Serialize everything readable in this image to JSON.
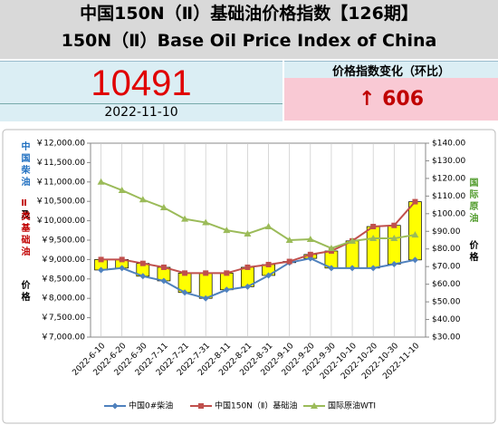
{
  "header": {
    "title_cn": "中国150N（Ⅱ）基础油价格指数【126期】",
    "title_en": "150N（Ⅱ）Base Oil Price Index of China"
  },
  "index": {
    "value": "10491",
    "date": "2022-11-10"
  },
  "change": {
    "label": "价格指数变化（环比）",
    "value": "↑ 606"
  },
  "chart_data": {
    "type": "line",
    "categories": [
      "2022-6-10",
      "2022-6-20",
      "2022-6-30",
      "2022-7-11",
      "2022-7-21",
      "2022-7-31",
      "2022-8-11",
      "2022-8-21",
      "2022-8-31",
      "2022-9-10",
      "2022-9-20",
      "2022-9-30",
      "2022-10-10",
      "2022-10-20",
      "2022-10-30",
      "2022-11-10"
    ],
    "series": [
      {
        "name": "中国0#柴油",
        "color": "#4f81bd",
        "marker": "diamond",
        "values": [
          8730,
          8780,
          8570,
          8450,
          8150,
          8000,
          8220,
          8300,
          8590,
          8920,
          9030,
          8780,
          8780,
          8780,
          8880,
          8990
        ]
      },
      {
        "name": "中国150N（Ⅱ）基础油",
        "color": "#c0504d",
        "marker": "square",
        "values": [
          9000,
          9000,
          8900,
          8800,
          8650,
          8650,
          8650,
          8800,
          8870,
          8950,
          9130,
          9220,
          9480,
          9850,
          9880,
          10491
        ]
      },
      {
        "name": "国际原油WTI",
        "color": "#9bbb59",
        "marker": "triangle",
        "axis": "y2",
        "values": [
          118,
          113.3,
          108,
          103.5,
          97,
          95,
          90.6,
          88.6,
          92.7,
          85,
          85.5,
          80.4,
          84.5,
          86,
          86,
          88
        ]
      }
    ],
    "spread_color": "#ffff00",
    "ylim": [
      7000,
      12000
    ],
    "yticks": [
      {
        "value": 7000,
        "label": "￥7,000.00"
      },
      {
        "value": 7500,
        "label": "￥7,500.00"
      },
      {
        "value": 8000,
        "label": "￥8,000.00"
      },
      {
        "value": 8500,
        "label": "￥8,500.00"
      },
      {
        "value": 9000,
        "label": "￥9,000.00"
      },
      {
        "value": 9500,
        "label": "￥9,500.00"
      },
      {
        "value": 10000,
        "label": "￥10,000.00"
      },
      {
        "value": 10500,
        "label": "￥10,500.00"
      },
      {
        "value": 11000,
        "label": "￥11,000.00"
      },
      {
        "value": 11500,
        "label": "￥11,500.00"
      },
      {
        "value": 12000,
        "label": "￥12,000.00"
      }
    ],
    "y2lim": [
      30,
      140
    ],
    "y2ticks": [
      {
        "value": 30,
        "label": "$30.00"
      },
      {
        "value": 40,
        "label": "$40.00"
      },
      {
        "value": 50,
        "label": "$50.00"
      },
      {
        "value": 60,
        "label": "$60.00"
      },
      {
        "value": 70,
        "label": "$70.00"
      },
      {
        "value": 80,
        "label": "$80.00"
      },
      {
        "value": 90,
        "label": "$90.00"
      },
      {
        "value": 100,
        "label": "$100.00"
      },
      {
        "value": 110,
        "label": "$110.00"
      },
      {
        "value": 120,
        "label": "$120.00"
      },
      {
        "value": 130,
        "label": "$130.00"
      },
      {
        "value": 140,
        "label": "$140.00"
      }
    ],
    "y_label_parts": [
      {
        "text": "中国柴油",
        "color": "#1f6fc0"
      },
      {
        "text": "及",
        "color": "#000000"
      },
      {
        "text": "Ⅱ类基础油",
        "color": "#c00000"
      },
      {
        "text": "价格",
        "color": "#000000"
      }
    ],
    "y2_label_parts": [
      {
        "text": "国际原油",
        "color": "#4f9a2a"
      },
      {
        "text": "价格",
        "color": "#000000"
      }
    ],
    "grid": true
  }
}
